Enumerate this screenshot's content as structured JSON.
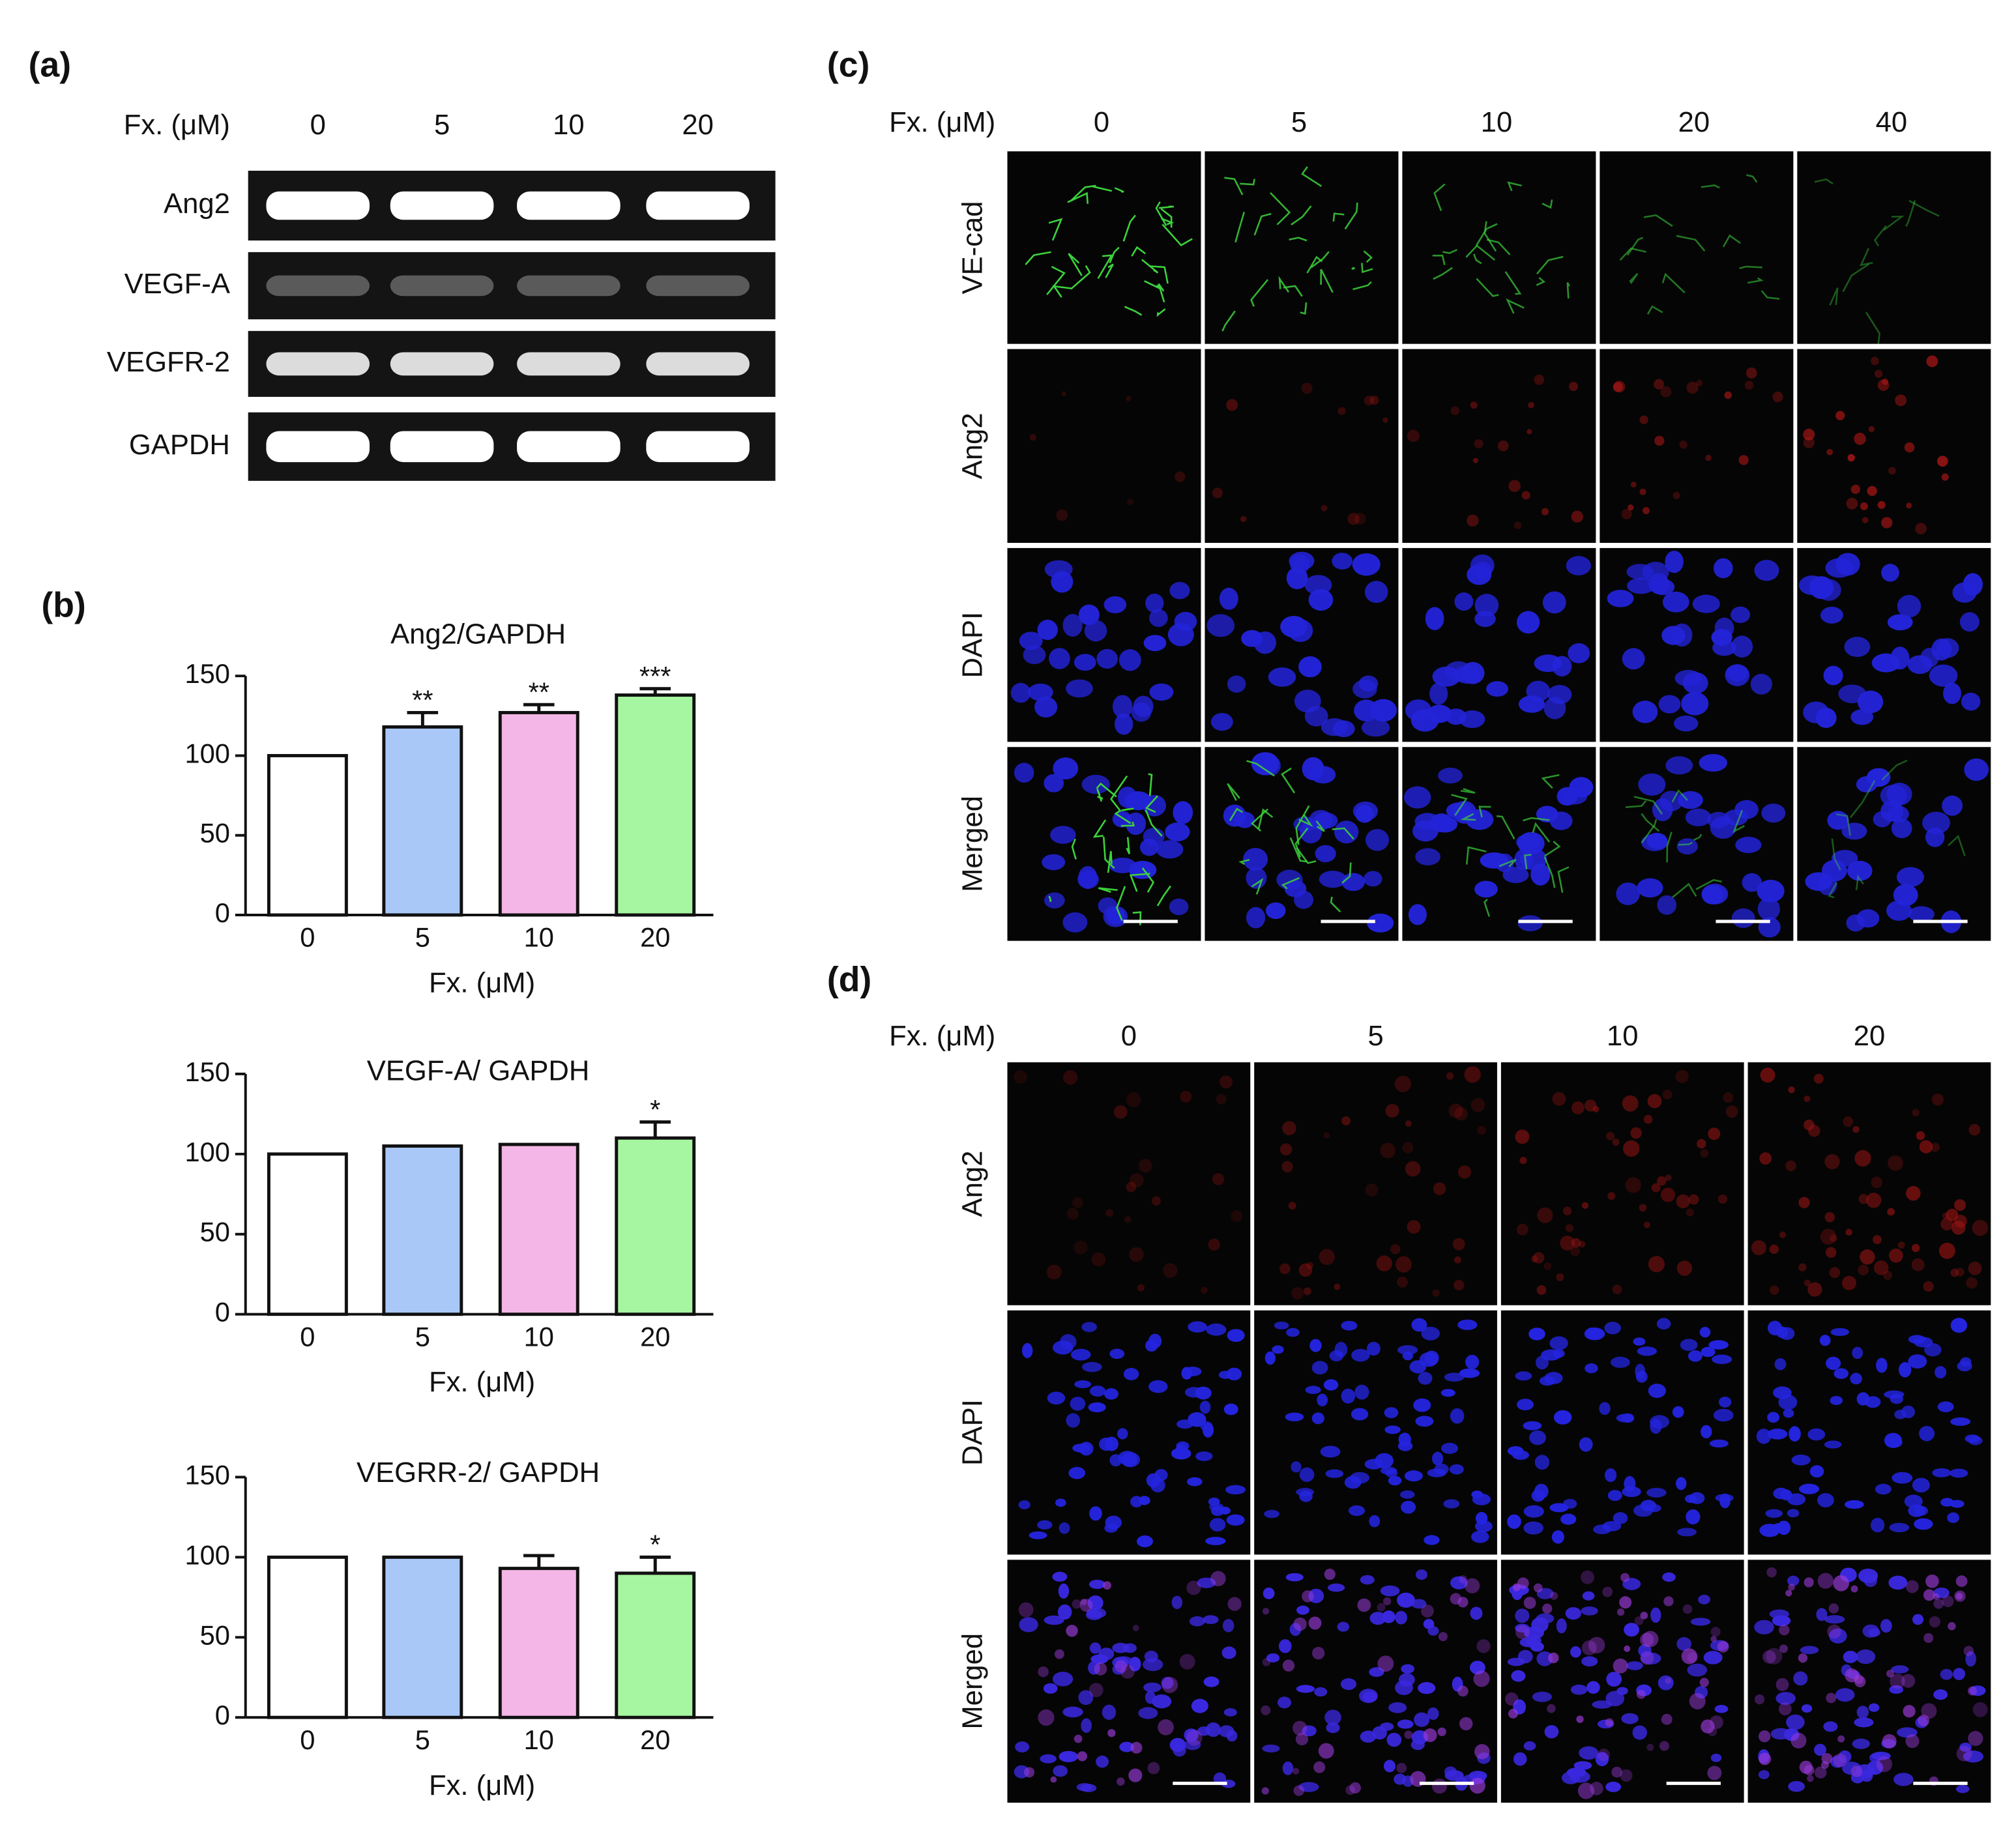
{
  "panel_a": {
    "label": "(a)",
    "x_label": "Fx. (μM)",
    "lanes": [
      "0",
      "5",
      "10",
      "20"
    ],
    "rows": [
      "Ang2",
      "VEGF-A",
      "VEGFR-2",
      "GAPDH"
    ]
  },
  "panel_b": {
    "label": "(b)"
  },
  "chart_data": [
    {
      "type": "bar",
      "title": "Ang2/GAPDH",
      "categories": [
        "0",
        "5",
        "10",
        "20"
      ],
      "values": [
        100,
        118,
        127,
        138
      ],
      "errors": [
        null,
        9,
        5,
        4
      ],
      "annotations": [
        null,
        "**",
        "**",
        "***"
      ],
      "colors": [
        "#ffffff",
        "#a9c8f7",
        "#f4b6e6",
        "#a6f5a0"
      ],
      "x_label": "Fx. (μM)",
      "ylim": [
        0,
        150
      ],
      "yticks": [
        0,
        50,
        100,
        150
      ]
    },
    {
      "type": "bar",
      "title": "VEGF-A/ GAPDH",
      "categories": [
        "0",
        "5",
        "10",
        "20"
      ],
      "values": [
        100,
        105,
        106,
        110
      ],
      "errors": [
        null,
        null,
        null,
        10
      ],
      "annotations": [
        null,
        null,
        null,
        "*"
      ],
      "colors": [
        "#ffffff",
        "#a9c8f7",
        "#f4b6e6",
        "#a6f5a0"
      ],
      "x_label": "Fx. (μM)",
      "ylim": [
        0,
        150
      ],
      "yticks": [
        0,
        50,
        100,
        150
      ]
    },
    {
      "type": "bar",
      "title": "VEGRR-2/ GAPDH",
      "categories": [
        "0",
        "5",
        "10",
        "20"
      ],
      "values": [
        100,
        100,
        93,
        90
      ],
      "errors": [
        null,
        null,
        8,
        10
      ],
      "annotations": [
        null,
        null,
        null,
        "*"
      ],
      "colors": [
        "#ffffff",
        "#a9c8f7",
        "#f4b6e6",
        "#a6f5a0"
      ],
      "x_label": "Fx. (μM)",
      "ylim": [
        0,
        150
      ],
      "yticks": [
        0,
        50,
        100,
        150
      ]
    }
  ],
  "panel_c": {
    "label": "(c)",
    "x_label": "Fx. (μM)",
    "columns": [
      "0",
      "5",
      "10",
      "20",
      "40"
    ],
    "rows": [
      {
        "label": "VE-cad",
        "color": "#3aa860"
      },
      {
        "label": "Ang2",
        "color": "#d43030"
      },
      {
        "label": "DAPI",
        "color": "#3a78c8"
      },
      {
        "label": "Merged",
        "color": "#111111"
      }
    ]
  },
  "panel_d": {
    "label": "(d)",
    "x_label": "Fx. (μM)",
    "columns": [
      "0",
      "5",
      "10",
      "20"
    ],
    "rows": [
      {
        "label": "Ang2",
        "color": "#d43030"
      },
      {
        "label": "DAPI",
        "color": "#3a78c8"
      },
      {
        "label": "Merged",
        "color": "#111111"
      }
    ]
  }
}
